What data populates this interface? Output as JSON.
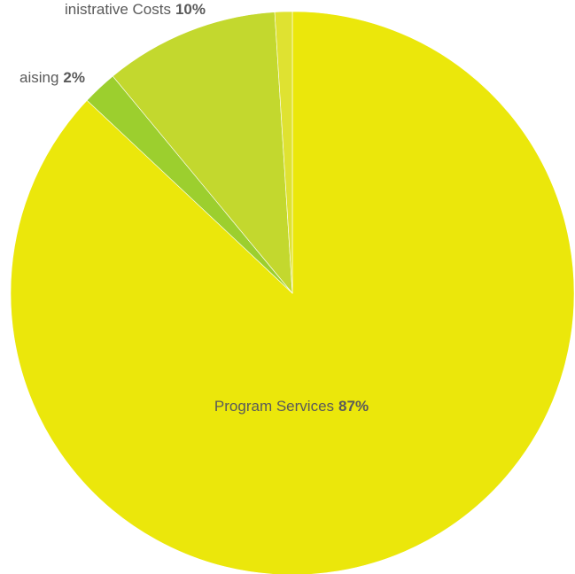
{
  "chart_data": {
    "type": "pie",
    "slices": [
      {
        "label": "Program Services",
        "value": 87,
        "value_label": "87%",
        "color": "#ebe70b"
      },
      {
        "label": "Fundraising",
        "value": 2,
        "value_label": "2%",
        "color": "#9ccf2e"
      },
      {
        "label": "Administrative Costs",
        "value": 10,
        "value_label": "10%",
        "color": "#c3d82e"
      },
      {
        "label": "",
        "value": 1,
        "value_label": "",
        "color": "#dfe231"
      }
    ],
    "start": "12 o'clock",
    "direction": "clockwise",
    "legend": "none",
    "labels_visible": [
      {
        "slice": 0,
        "name_text": "Program Services",
        "value_text": "87%"
      },
      {
        "slice": 1,
        "name_text": "aising",
        "value_text": "2%"
      },
      {
        "slice": 2,
        "name_text": "inistrative Costs",
        "value_text": "10%"
      }
    ]
  }
}
